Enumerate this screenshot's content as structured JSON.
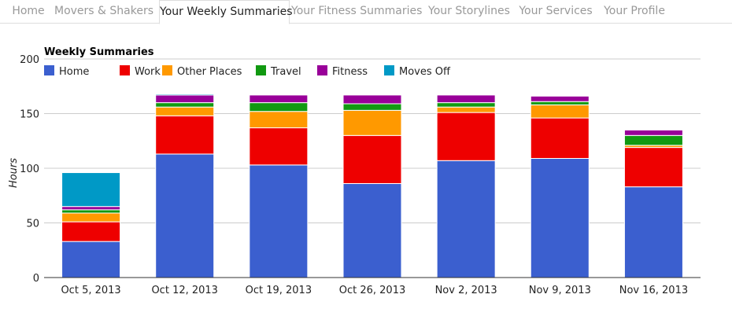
{
  "nav": {
    "tabs": [
      {
        "label": "Home"
      },
      {
        "label": "Movers & Shakers"
      },
      {
        "label": "Your Weekly Summaries",
        "active": true
      },
      {
        "label": "Your Fitness Summaries"
      },
      {
        "label": "Your Storylines"
      },
      {
        "label": "Your Services"
      },
      {
        "label": "Your Profile"
      }
    ]
  },
  "chart_data": {
    "type": "bar",
    "stacked": true,
    "title": "Weekly Summaries",
    "xlabel": "",
    "ylabel": "Hours",
    "ylim": [
      0,
      200
    ],
    "yticks": [
      "0",
      "50",
      "100",
      "150",
      "200"
    ],
    "grid": true,
    "legend": "top-left",
    "categories": [
      "Oct 5, 2013",
      "Oct 12, 2013",
      "Oct 19, 2013",
      "Oct 26, 2013",
      "Nov 2, 2013",
      "Nov 9, 2013",
      "Nov 16, 2013"
    ],
    "series": [
      {
        "name": "Home",
        "color": "#3b5fcf",
        "values": [
          33,
          113,
          103,
          86,
          107,
          109,
          83
        ]
      },
      {
        "name": "Work",
        "color": "#ee0000",
        "values": [
          18,
          35,
          34,
          44,
          44,
          37,
          36
        ]
      },
      {
        "name": "Other Places",
        "color": "#ff9900",
        "values": [
          8,
          8,
          15,
          23,
          5,
          12,
          2
        ]
      },
      {
        "name": "Travel",
        "color": "#119911",
        "values": [
          3,
          4,
          8,
          6,
          4,
          3,
          9
        ]
      },
      {
        "name": "Fitness",
        "color": "#990099",
        "values": [
          3,
          7,
          7,
          8,
          7,
          5,
          5
        ]
      },
      {
        "name": "Moves Off",
        "color": "#0099c6",
        "values": [
          31,
          1,
          0,
          0,
          0,
          0,
          0
        ]
      }
    ]
  }
}
